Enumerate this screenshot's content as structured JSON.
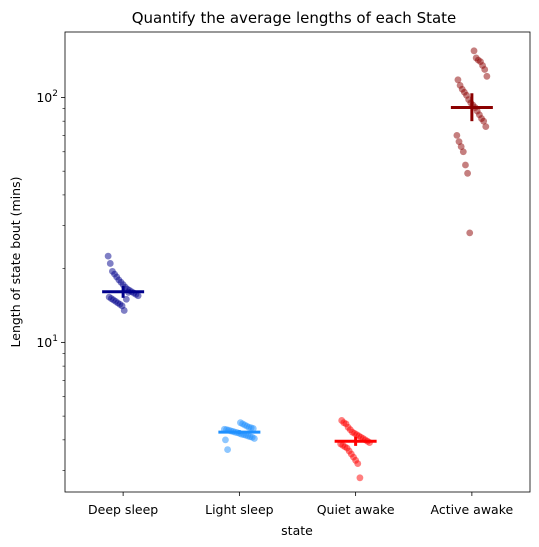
{
  "chart_data": {
    "type": "scatter",
    "title": "Quantify the average lengths of each State",
    "xlabel": "state",
    "ylabel": "Length of state bout (mins)",
    "categories": [
      "Deep sleep",
      "Light sleep",
      "Quiet awake",
      "Active awake"
    ],
    "yscale": "log",
    "ylim": [
      2.45,
      185
    ],
    "y_ticks": [
      {
        "value": 10,
        "base": "10",
        "exp": "1"
      },
      {
        "value": 100,
        "base": "10",
        "exp": "2"
      }
    ],
    "grid": false,
    "series": [
      {
        "category": "Deep sleep",
        "color": "#00008b",
        "points": [
          22.5,
          21.0,
          19.5,
          19.0,
          18.5,
          18.0,
          17.6,
          17.2,
          16.8,
          16.5,
          16.3,
          16.1,
          15.9,
          15.7,
          15.5,
          15.3,
          15.1,
          14.9,
          14.7,
          14.5,
          14.3,
          14.1,
          13.5,
          15.0,
          16.0
        ],
        "mean": 16.1,
        "ci": [
          15.2,
          17.0
        ]
      },
      {
        "category": "Light sleep",
        "color": "#1e90ff",
        "points": [
          4.7,
          4.65,
          4.6,
          4.55,
          4.5,
          4.48,
          4.45,
          4.42,
          4.4,
          4.38,
          4.35,
          4.33,
          4.3,
          4.28,
          4.25,
          4.22,
          4.2,
          4.18,
          4.15,
          4.12,
          4.1,
          4.05,
          4.0,
          3.65
        ],
        "mean": 4.3,
        "ci": [
          4.22,
          4.38
        ]
      },
      {
        "category": "Quiet awake",
        "color": "#ff0000",
        "points": [
          4.8,
          4.7,
          4.65,
          4.5,
          4.4,
          4.3,
          4.25,
          4.2,
          4.15,
          4.1,
          4.05,
          4.0,
          3.95,
          3.9,
          3.85,
          3.8,
          3.75,
          3.7,
          3.6,
          3.5,
          3.4,
          3.3,
          3.2,
          2.8
        ],
        "mean": 3.95,
        "ci": [
          3.78,
          4.12
        ]
      },
      {
        "category": "Active awake",
        "color": "#8b0000",
        "points": [
          155,
          145,
          142,
          140,
          135,
          130,
          122,
          118,
          112,
          108,
          105,
          102,
          98,
          95,
          93,
          91,
          88,
          85,
          82,
          80,
          76,
          70,
          66,
          63,
          60,
          53,
          49,
          28
        ],
        "mean": 91,
        "ci": [
          80,
          104
        ]
      }
    ]
  }
}
